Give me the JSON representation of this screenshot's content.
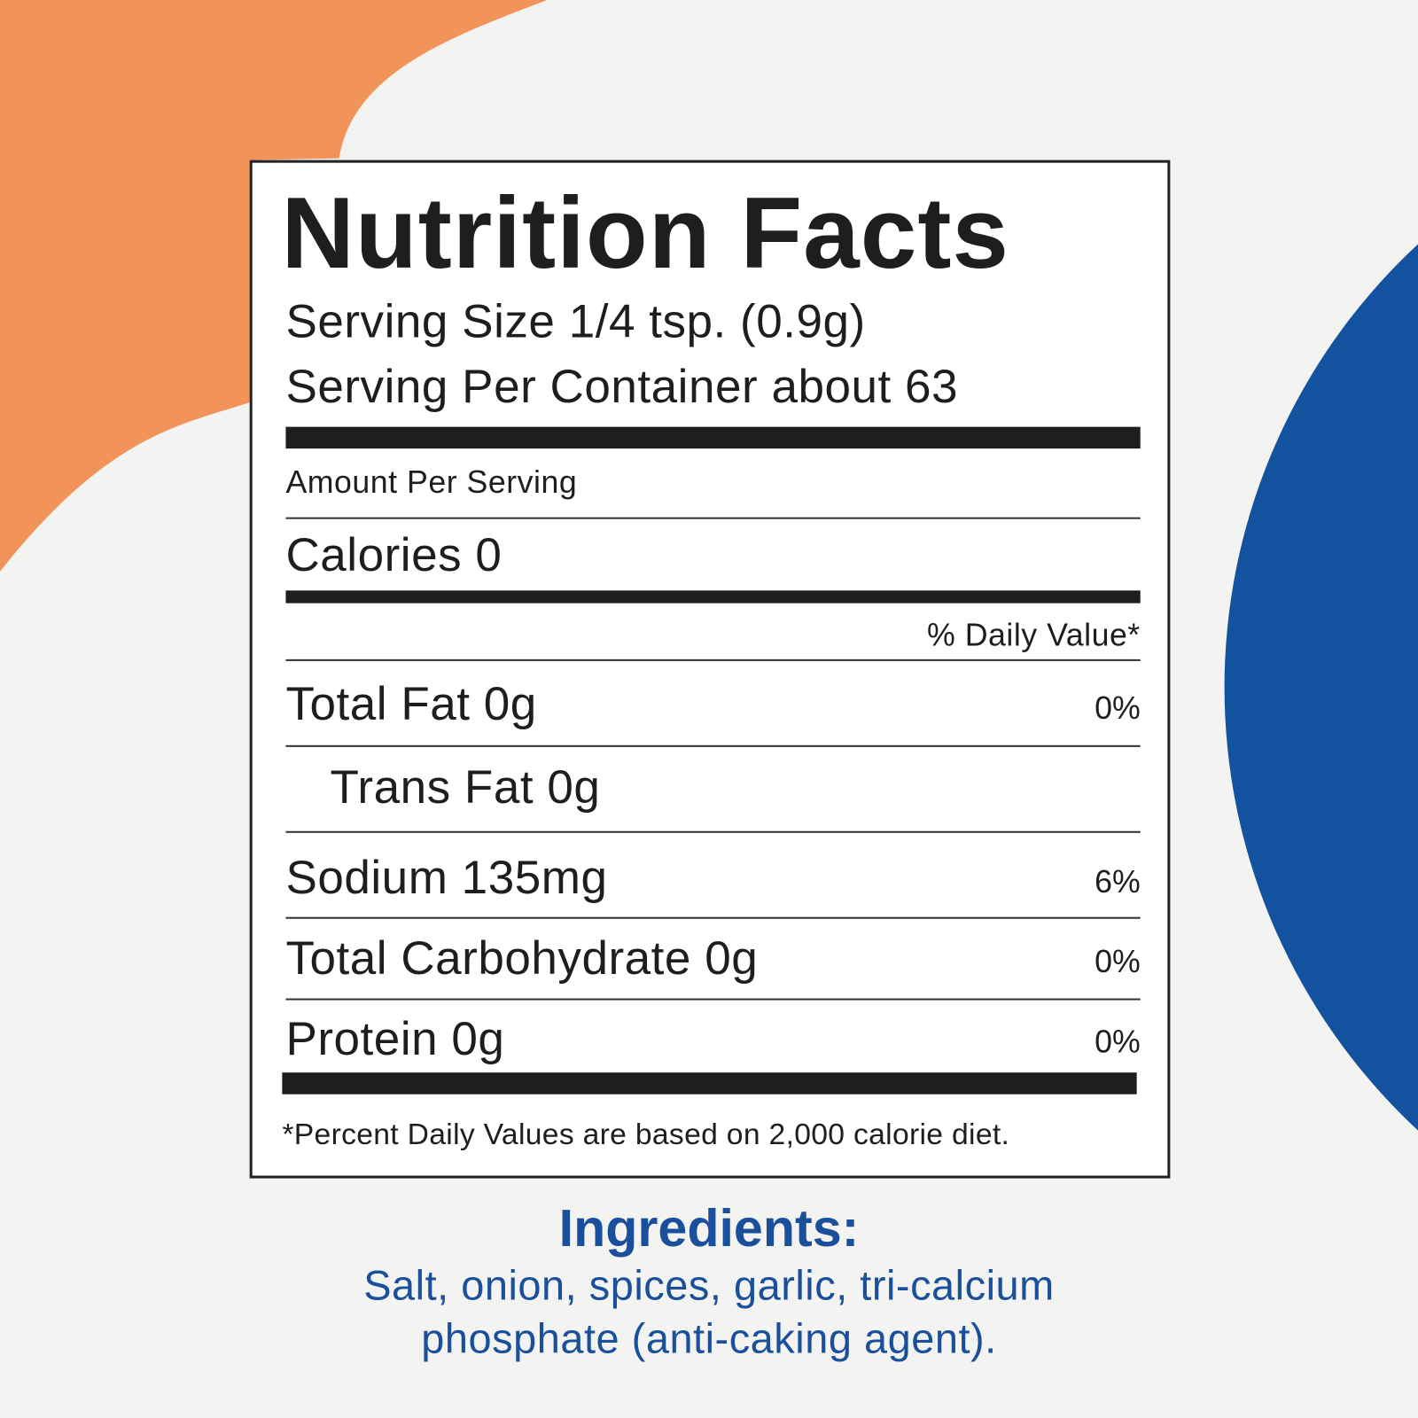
{
  "colors": {
    "orange": "#F2935A",
    "blue": "#12529E",
    "ink": "#1e1e1e",
    "ingredients_text": "#1a4f9c"
  },
  "label": {
    "title": "Nutrition Facts",
    "serving_size": "Serving Size 1/4 tsp. (0.9g)",
    "servings_per_container": "Serving Per Container about 63",
    "amount_per_serving": "Amount Per Serving",
    "calories": "Calories 0",
    "daily_value_header": "% Daily Value*",
    "rows": [
      {
        "label": "Total Fat 0g",
        "dv": "0%"
      },
      {
        "label": "Trans Fat 0g",
        "dv": ""
      },
      {
        "label": "Sodium 135mg",
        "dv": "6%"
      },
      {
        "label": "Total Carbohydrate 0g",
        "dv": "0%"
      },
      {
        "label": "Protein 0g",
        "dv": "0%"
      }
    ],
    "footnote": "*Percent Daily Values are based on 2,000 calorie diet."
  },
  "ingredients": {
    "title": "Ingredients:",
    "line1": "Salt, onion, spices, garlic, tri-calcium",
    "line2": "phosphate (anti-caking agent)."
  }
}
